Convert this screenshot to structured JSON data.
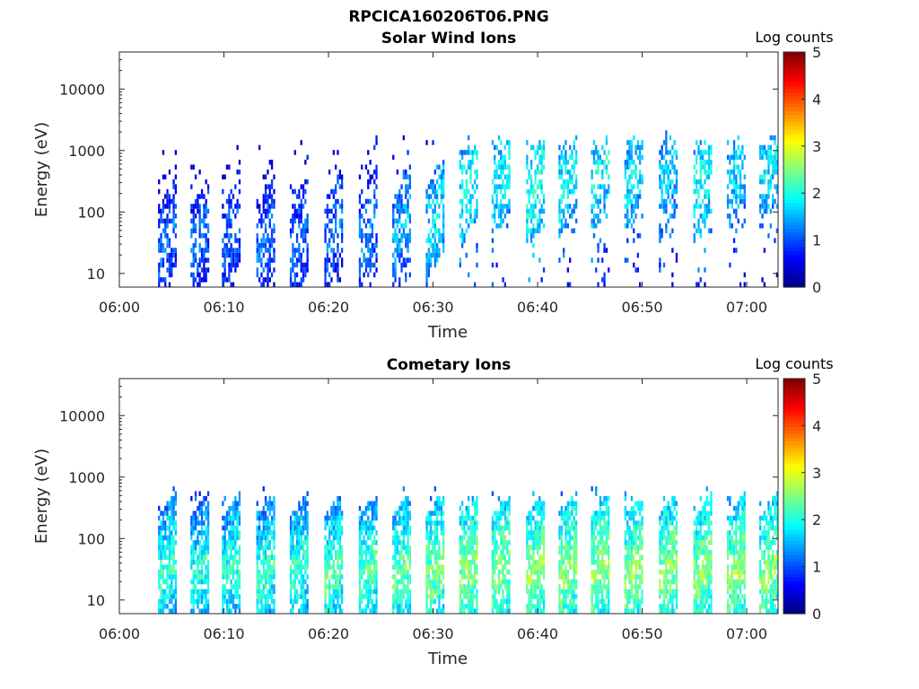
{
  "figure_title": "RPCICA160206T06.PNG",
  "colorbar_label": "Log counts",
  "colormap": [
    "#00007f",
    "#0000ff",
    "#007fff",
    "#00ffff",
    "#7fff7f",
    "#ffff00",
    "#ff7f00",
    "#ff0000",
    "#7f0000"
  ],
  "chart_data": [
    {
      "type": "heatmap",
      "title": "Solar Wind Ions",
      "xlabel": "Time",
      "ylabel": "Energy (eV)",
      "x_ticks": [
        "06:00",
        "06:10",
        "06:20",
        "06:30",
        "06:40",
        "06:50",
        "07:00"
      ],
      "y_ticks": [
        "10",
        "100",
        "1000",
        "10000"
      ],
      "y_scale": "log",
      "xlim": [
        "06:00",
        "07:03"
      ],
      "ylim": [
        6,
        40000
      ],
      "colorbar": {
        "label": "Log counts",
        "range": [
          0,
          5
        ],
        "ticks": [
          "0",
          "1",
          "2",
          "3",
          "4",
          "5"
        ]
      },
      "sweep_times_min": [
        3.7,
        6.8,
        9.8,
        13.1,
        16.3,
        19.6,
        22.9,
        26.1,
        29.3,
        32.5,
        35.6,
        38.9,
        42.0,
        45.1,
        48.3,
        51.6,
        54.9,
        58.1,
        61.2
      ],
      "peak_energy_ev": [
        20,
        20,
        20,
        20,
        20,
        25,
        30,
        30,
        40,
        150,
        200,
        150,
        200,
        250,
        250,
        200,
        200,
        300,
        300
      ],
      "peak_log_counts": [
        1.2,
        1.2,
        1.2,
        1.2,
        1.2,
        1.2,
        1.3,
        1.5,
        1.8,
        2.0,
        1.9,
        2.1,
        1.9,
        1.9,
        1.8,
        1.7,
        2.0,
        1.8,
        1.8
      ]
    },
    {
      "type": "heatmap",
      "title": "Cometary Ions",
      "xlabel": "Time",
      "ylabel": "Energy (eV)",
      "x_ticks": [
        "06:00",
        "06:10",
        "06:20",
        "06:30",
        "06:40",
        "06:50",
        "07:00"
      ],
      "y_ticks": [
        "10",
        "100",
        "1000",
        "10000"
      ],
      "y_scale": "log",
      "xlim": [
        "06:00",
        "07:03"
      ],
      "ylim": [
        6,
        40000
      ],
      "colorbar": {
        "label": "Log counts",
        "range": [
          0,
          5
        ],
        "ticks": [
          "0",
          "1",
          "2",
          "3",
          "4",
          "5"
        ]
      },
      "sweep_times_min": [
        3.7,
        6.8,
        9.8,
        13.1,
        16.3,
        19.6,
        22.9,
        26.1,
        29.3,
        32.5,
        35.6,
        38.9,
        42.0,
        45.1,
        48.3,
        51.6,
        54.9,
        58.1,
        61.2
      ],
      "peak_energy_ev": [
        20,
        20,
        20,
        20,
        20,
        20,
        20,
        20,
        20,
        20,
        20,
        20,
        20,
        20,
        20,
        20,
        20,
        20,
        20
      ],
      "peak_log_counts": [
        2.2,
        2.1,
        2.2,
        2.2,
        2.2,
        2.3,
        2.3,
        2.4,
        2.5,
        2.6,
        2.6,
        2.6,
        2.6,
        2.6,
        2.6,
        2.6,
        2.6,
        2.6,
        2.6
      ]
    }
  ]
}
